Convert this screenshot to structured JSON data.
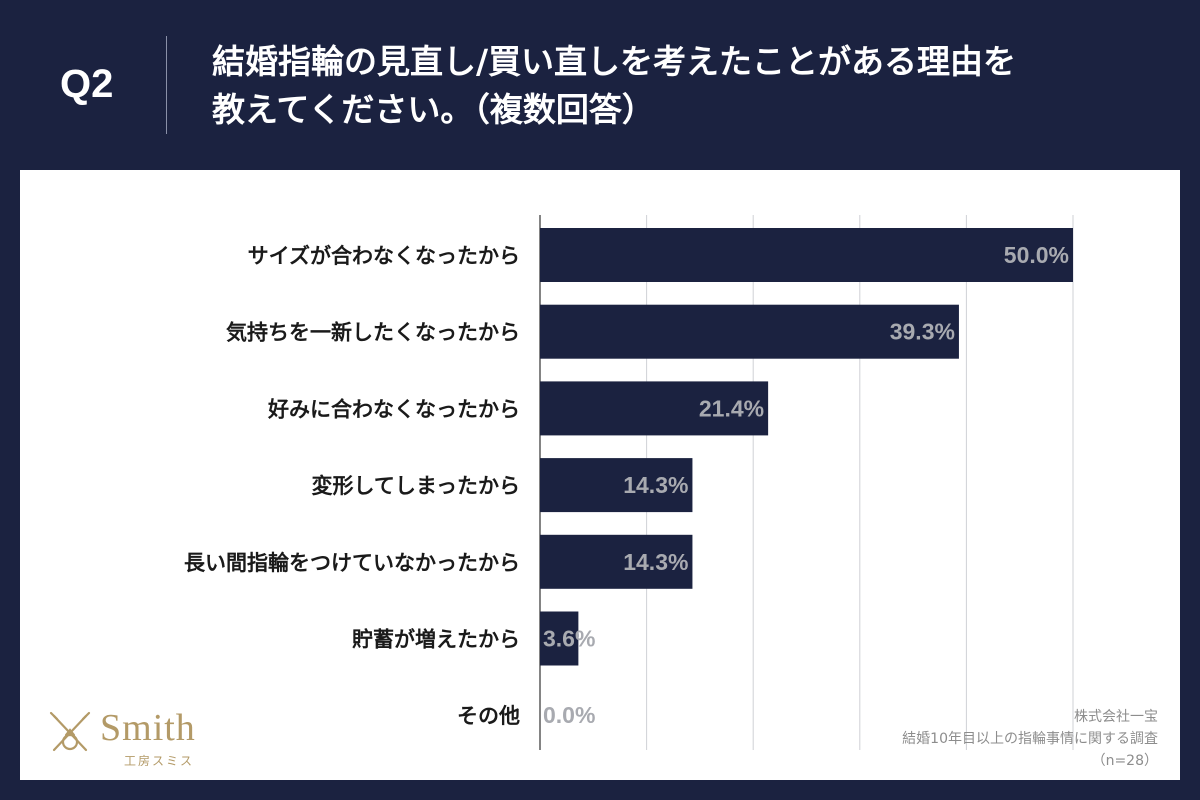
{
  "header": {
    "question_label": "Q2",
    "title_line1": "結婚指輪の見直し/買い直しを考えたことがある理由を",
    "title_line2": "教えてください。（複数回答）"
  },
  "colors": {
    "background": "#1b2240",
    "bar": "#1b2240",
    "panel": "#ffffff",
    "value_label": "#a8aab0",
    "gridline": "#cfd1d6",
    "brand_gold": "#b39a67"
  },
  "chart_data": {
    "type": "bar",
    "orientation": "horizontal",
    "categories": [
      "サイズが合わなくなったから",
      "気持ちを一新したくなったから",
      "好みに合わなくなったから",
      "変形してしまったから",
      "長い間指輪をつけていなかったから",
      "貯蓄が増えたから",
      "その他"
    ],
    "values": [
      50.0,
      39.3,
      21.4,
      14.3,
      14.3,
      3.6,
      0.0
    ],
    "value_labels": [
      "50.0%",
      "39.3%",
      "21.4%",
      "14.3%",
      "14.3%",
      "3.6%",
      "0.0%"
    ],
    "xlim": [
      0,
      50
    ],
    "grid_ticks": [
      0,
      10,
      20,
      30,
      40,
      50
    ],
    "grid": true,
    "title": "",
    "xlabel": "",
    "ylabel": ""
  },
  "logo": {
    "name": "Smith",
    "sub": "工房スミス",
    "icon": "ring-tools-icon"
  },
  "source": {
    "company": "株式会社一宝",
    "survey": "結婚10年目以上の指輪事情に関する調査",
    "sample": "（n=28）"
  }
}
